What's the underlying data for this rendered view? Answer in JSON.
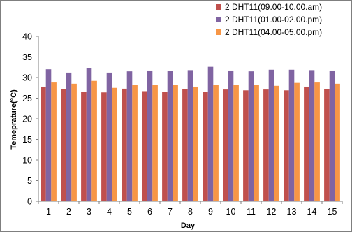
{
  "chart_data": {
    "type": "bar",
    "xlabel": "Day",
    "ylabel": "Temeprature(°C)",
    "ylim": [
      0,
      40
    ],
    "y_ticks": [
      0,
      5,
      10,
      15,
      20,
      25,
      30,
      35,
      40
    ],
    "grid": false,
    "legend_position": "top-right",
    "categories": [
      "1",
      "2",
      "3",
      "4",
      "5",
      "6",
      "7",
      "8",
      "9",
      "10",
      "11",
      "12",
      "13",
      "14",
      "15"
    ],
    "series": [
      {
        "name": "2 DHT11(09.00-10.00.am)",
        "color": "#c0504d",
        "values": [
          27.8,
          27.2,
          26.6,
          26.4,
          27.3,
          26.7,
          26.6,
          27.2,
          26.5,
          27.1,
          26.9,
          27.1,
          26.9,
          27.8,
          27.2
        ]
      },
      {
        "name": "2 DHT11(01.00-02.00.pm)",
        "color": "#8064a2",
        "values": [
          32.0,
          31.2,
          32.3,
          31.2,
          31.5,
          31.7,
          31.6,
          31.8,
          32.6,
          31.7,
          31.5,
          31.9,
          31.9,
          31.8,
          31.7
        ]
      },
      {
        "name": "2 DHT11(04.00-05.00.pm)",
        "color": "#f79646",
        "values": [
          28.8,
          28.5,
          29.2,
          27.5,
          28.3,
          28.2,
          28.2,
          27.8,
          28.3,
          28.2,
          28.2,
          28.0,
          28.7,
          28.8,
          28.5
        ]
      }
    ]
  }
}
